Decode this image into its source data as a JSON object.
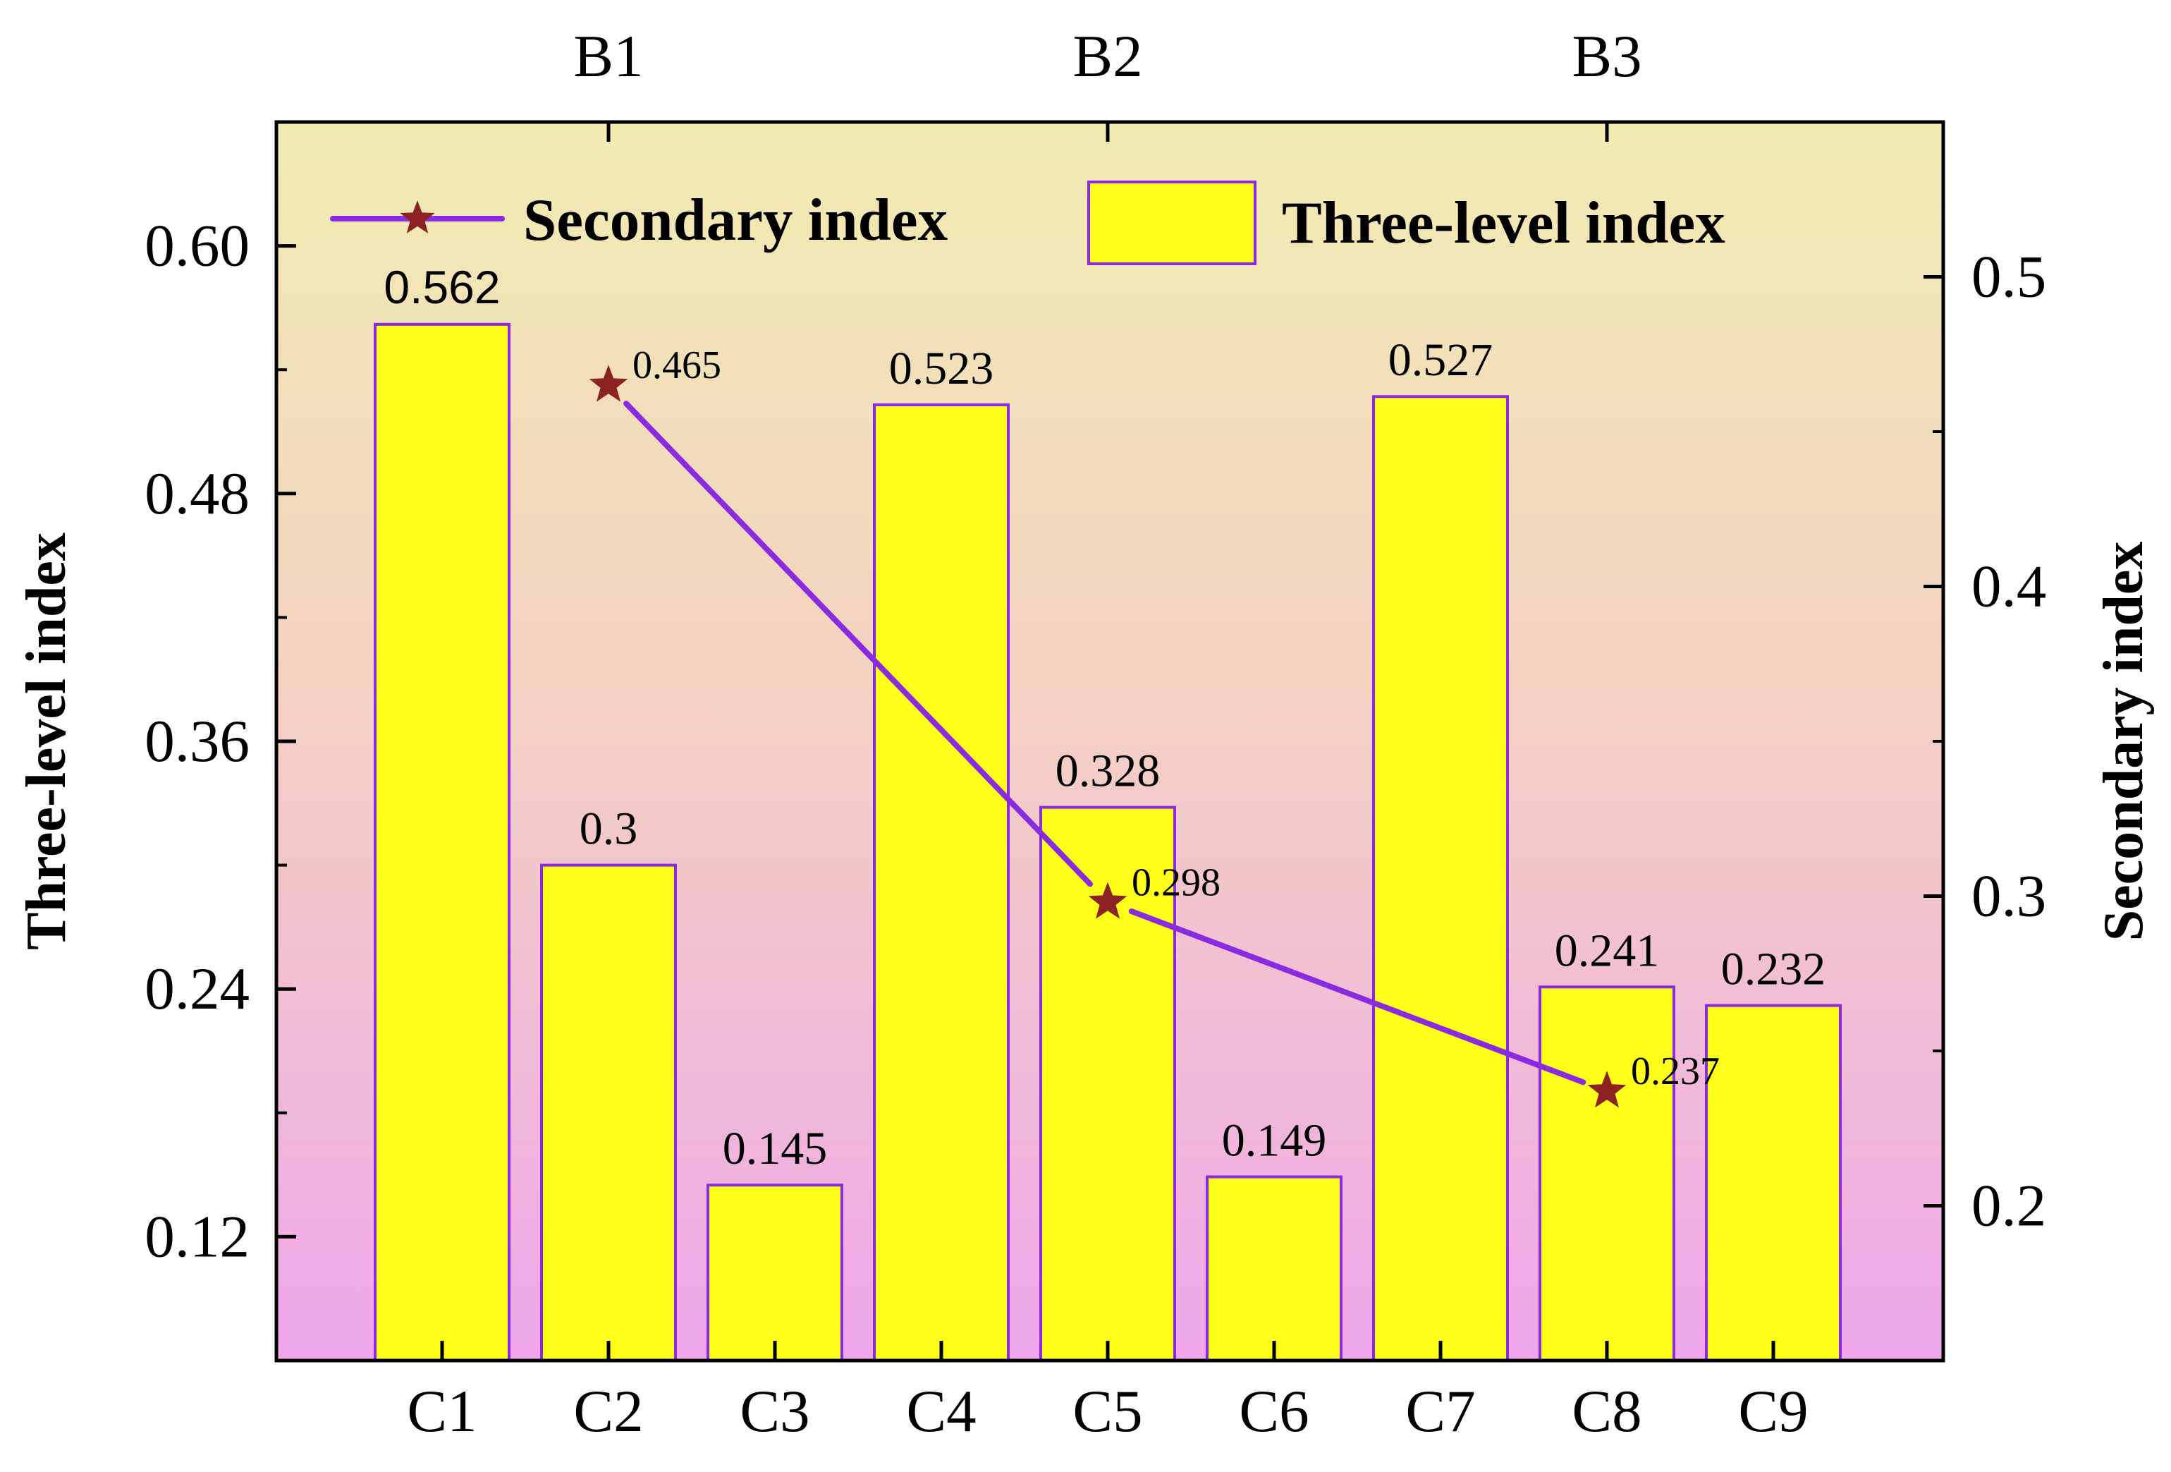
{
  "chart_data": {
    "type": "bar",
    "categories": [
      "C1",
      "C2",
      "C3",
      "C4",
      "C5",
      "C6",
      "C7",
      "C8",
      "C9"
    ],
    "groups": [
      {
        "label": "B1",
        "center_category": "C2"
      },
      {
        "label": "B2",
        "center_category": "C5"
      },
      {
        "label": "B3",
        "center_category": "C8"
      }
    ],
    "series": [
      {
        "name": "Three-level index",
        "type": "bar",
        "axis": "left",
        "values": [
          0.562,
          0.3,
          0.145,
          0.523,
          0.328,
          0.149,
          0.527,
          0.241,
          0.232
        ],
        "labels": [
          "0.562",
          "0.3",
          "0.145",
          "0.523",
          "0.328",
          "0.149",
          "0.527",
          "0.241",
          "0.232"
        ]
      },
      {
        "name": "Secondary index",
        "type": "line",
        "axis": "right",
        "points": [
          {
            "category": "C2",
            "value": 0.465,
            "label": "0.465"
          },
          {
            "category": "C5",
            "value": 0.298,
            "label": "0.298"
          },
          {
            "category": "C8",
            "value": 0.237,
            "label": "0.237"
          }
        ]
      }
    ],
    "y_left": {
      "label": "Three-level index",
      "ticks": [
        0.12,
        0.24,
        0.36,
        0.48,
        0.6
      ],
      "tick_labels": [
        "0.12",
        "0.24",
        "0.36",
        "0.48",
        "0.60"
      ],
      "ylim": [
        0.06,
        0.66
      ]
    },
    "y_right": {
      "label": "Secondary index",
      "ticks": [
        0.2,
        0.3,
        0.4,
        0.5
      ],
      "tick_labels": [
        "0.2",
        "0.3",
        "0.4",
        "0.5"
      ],
      "ylim": [
        0.15,
        0.55
      ]
    },
    "legend": {
      "position": "top",
      "entries": [
        "Secondary index",
        "Three-level index"
      ]
    },
    "colors": {
      "bar_fill": "#ffff1a",
      "bar_edge": "#8a2be2",
      "line": "#8a2be2",
      "marker": "#8b2323",
      "bg_top": "#f2ebb2",
      "bg_mid": "#f3cfc4",
      "bg_bottom": "#efa6ea"
    }
  }
}
